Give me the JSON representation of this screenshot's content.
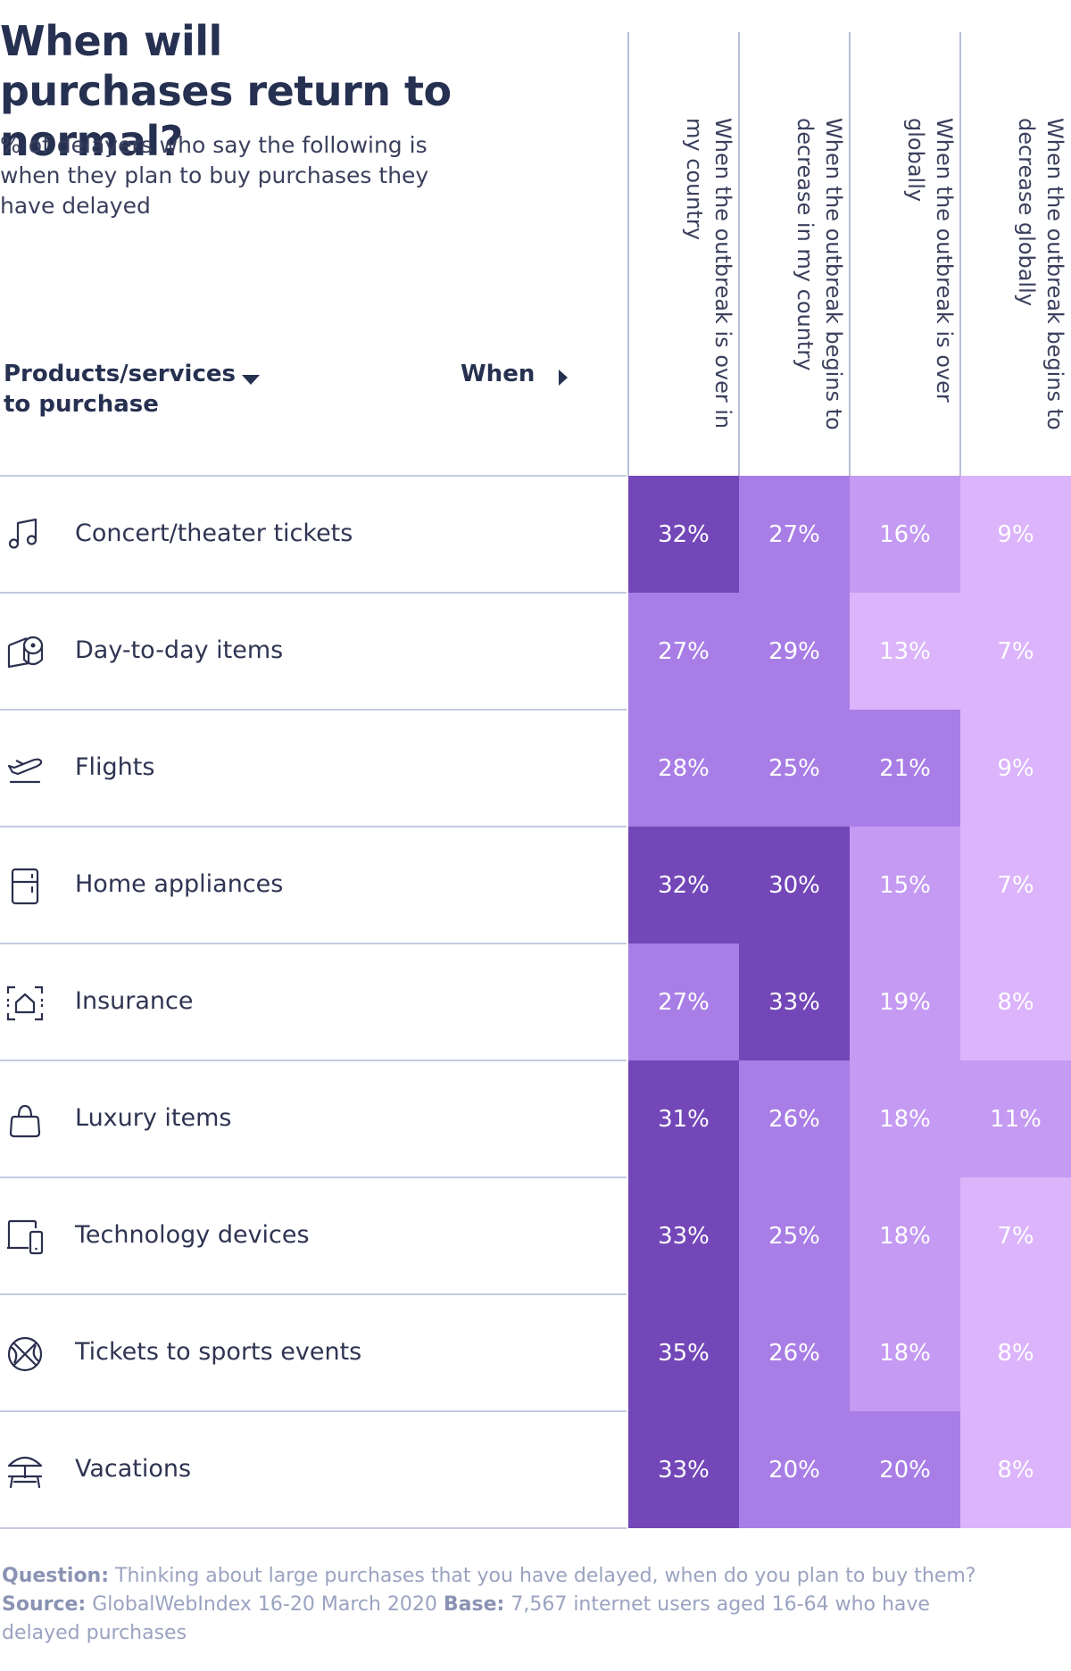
{
  "header": {
    "title": "When will purchases return to normal?",
    "subtitle": "% of delayers who say the following is when they plan to buy purchases they have delayed",
    "products_label": "Products/services to purchase",
    "when_label": "When"
  },
  "colors": {
    "darkest": "#7347b8",
    "dark": "#a87ee6",
    "medium": "#c49af2",
    "light": "#dbb4fb",
    "text": "#263050",
    "rule": "#c4cadf"
  },
  "chart_data": {
    "type": "table",
    "title": "When will purchases return to normal?",
    "subtitle": "% of delayers who say the following is when they plan to buy purchases they have delayed",
    "columns": [
      "When the outbreak is over in my country",
      "When the outbreak begins to decrease in my country",
      "When the outbreak is over globally",
      "When the outbreak begins to decrease globally"
    ],
    "rows": [
      {
        "label": "Concert/theater tickets",
        "icon": "music-note-icon",
        "values": [
          32,
          27,
          16,
          9
        ],
        "display": [
          "32%",
          "27%",
          "16%",
          "9%"
        ],
        "shades": [
          "darkest",
          "dark",
          "medium",
          "light"
        ]
      },
      {
        "label": "Day-to-day items",
        "icon": "toilet-roll-icon",
        "values": [
          27,
          29,
          13,
          7
        ],
        "display": [
          "27%",
          "29%",
          "13%",
          "7%"
        ],
        "shades": [
          "dark",
          "dark",
          "light",
          "light"
        ]
      },
      {
        "label": "Flights",
        "icon": "airplane-icon",
        "values": [
          28,
          25,
          21,
          9
        ],
        "display": [
          "28%",
          "25%",
          "21%",
          "9%"
        ],
        "shades": [
          "dark",
          "dark",
          "dark",
          "light"
        ]
      },
      {
        "label": "Home appliances",
        "icon": "fridge-icon",
        "values": [
          32,
          30,
          15,
          7
        ],
        "display": [
          "32%",
          "30%",
          "15%",
          "7%"
        ],
        "shades": [
          "darkest",
          "darkest",
          "medium",
          "light"
        ]
      },
      {
        "label": "Insurance",
        "icon": "house-scan-icon",
        "values": [
          27,
          33,
          19,
          8
        ],
        "display": [
          "27%",
          "33%",
          "19%",
          "8%"
        ],
        "shades": [
          "dark",
          "darkest",
          "medium",
          "light"
        ]
      },
      {
        "label": "Luxury items",
        "icon": "handbag-icon",
        "values": [
          31,
          26,
          18,
          11
        ],
        "display": [
          "31%",
          "26%",
          "18%",
          "11%"
        ],
        "shades": [
          "darkest",
          "dark",
          "medium",
          "medium"
        ]
      },
      {
        "label": "Technology devices",
        "icon": "devices-icon",
        "values": [
          33,
          25,
          18,
          7
        ],
        "display": [
          "33%",
          "25%",
          "18%",
          "7%"
        ],
        "shades": [
          "darkest",
          "dark",
          "medium",
          "light"
        ]
      },
      {
        "label": "Tickets to sports events",
        "icon": "basketball-icon",
        "values": [
          35,
          26,
          18,
          8
        ],
        "display": [
          "35%",
          "26%",
          "18%",
          "8%"
        ],
        "shades": [
          "darkest",
          "dark",
          "medium",
          "light"
        ]
      },
      {
        "label": "Vacations",
        "icon": "beach-umbrella-icon",
        "values": [
          33,
          20,
          20,
          8
        ],
        "display": [
          "33%",
          "20%",
          "20%",
          "8%"
        ],
        "shades": [
          "darkest",
          "dark",
          "dark",
          "light"
        ]
      }
    ]
  },
  "footer": {
    "question_label": "Question:",
    "question_text": "Thinking about large purchases that you have delayed, when do you plan to buy them?",
    "source_label": "Source:",
    "source_text": "GlobalWebIndex 16-20 March 2020",
    "base_label": "Base:",
    "base_text": "7,567 internet users aged 16-64 who have delayed purchases"
  }
}
